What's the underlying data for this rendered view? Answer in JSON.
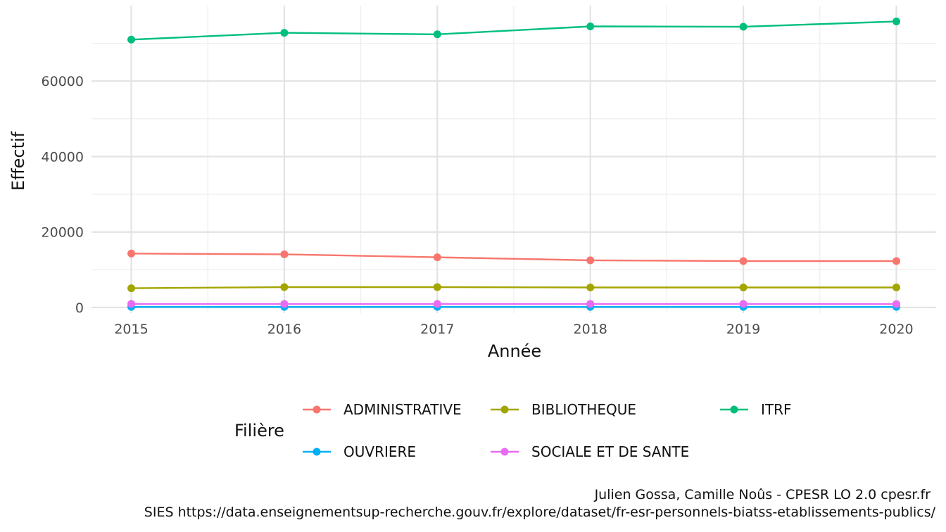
{
  "chart_data": {
    "type": "line",
    "title": "",
    "xlabel": "Année",
    "ylabel": "Effectif",
    "x": [
      2015,
      2016,
      2017,
      2018,
      2019,
      2020
    ],
    "xlim": [
      2014.74,
      2020.26
    ],
    "ylim": [
      -1500,
      80000
    ],
    "yticks": [
      0,
      20000,
      40000,
      60000
    ],
    "ytick_labels": [
      "0",
      "20000",
      "40000",
      "60000"
    ],
    "xtick_labels": [
      "2015",
      "2016",
      "2017",
      "2018",
      "2019",
      "2020"
    ],
    "grid": true,
    "legend_position": "bottom",
    "legend_title": "Filière",
    "series": [
      {
        "name": "ADMINISTRATIVE",
        "color": "#F8766D",
        "values": [
          14300,
          14100,
          13300,
          12500,
          12300,
          12300
        ]
      },
      {
        "name": "BIBLIOTHEQUE",
        "color": "#A3A500",
        "values": [
          5100,
          5400,
          5400,
          5300,
          5300,
          5300
        ]
      },
      {
        "name": "ITRF",
        "color": "#00BF7D",
        "values": [
          71000,
          72800,
          72400,
          74500,
          74400,
          75800
        ]
      },
      {
        "name": "OUVRIERE",
        "color": "#00B0F6",
        "values": [
          150,
          150,
          150,
          150,
          150,
          150
        ]
      },
      {
        "name": "SOCIALE ET DE SANTE",
        "color": "#E76BF3",
        "values": [
          950,
          950,
          950,
          950,
          950,
          900
        ]
      }
    ],
    "caption_lines": [
      "Julien Gossa, Camille Noûs - CPESR LO 2.0 cpesr.fr",
      "SIES https://data.enseignementsup-recherche.gouv.fr/explore/dataset/fr-esr-personnels-biatss-etablissements-publics/"
    ]
  }
}
